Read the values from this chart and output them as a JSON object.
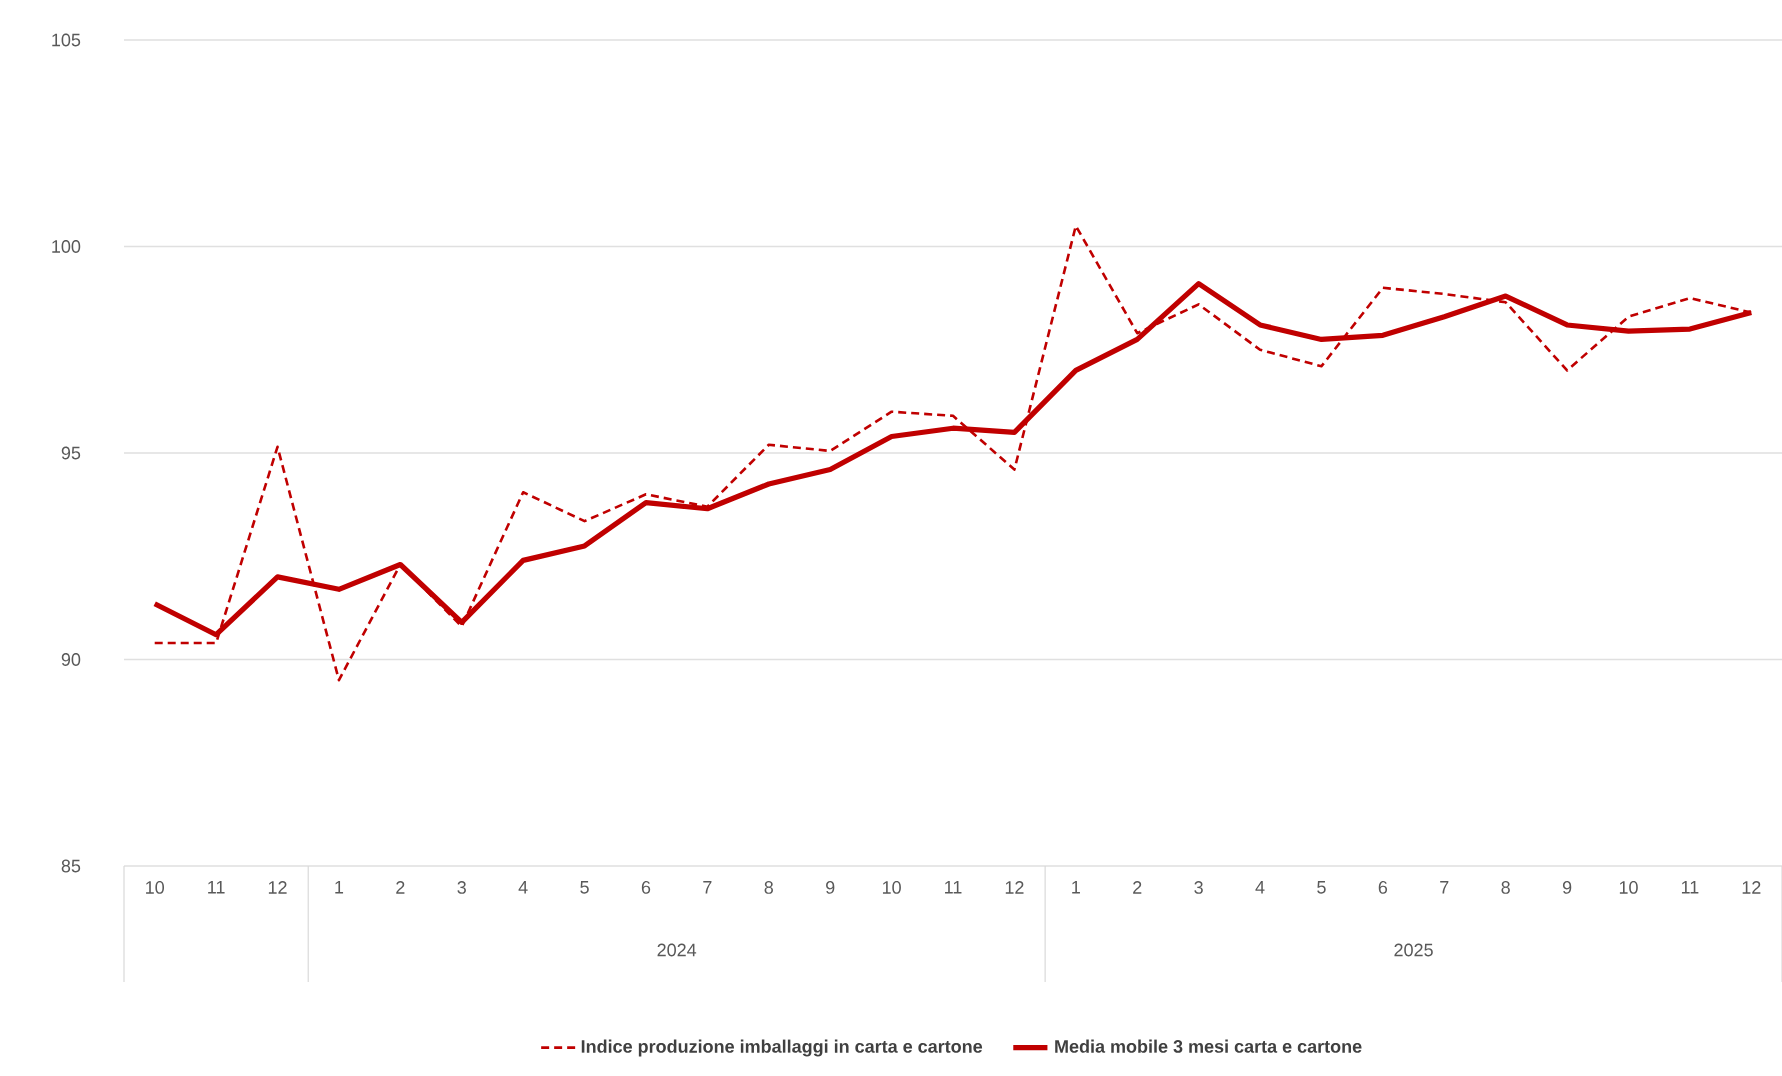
{
  "chart_data": {
    "type": "line",
    "categories": [
      "10",
      "11",
      "12",
      "1",
      "2",
      "3",
      "4",
      "5",
      "6",
      "7",
      "8",
      "9",
      "10",
      "11",
      "12",
      "1",
      "2",
      "3",
      "4",
      "5",
      "6",
      "7",
      "8",
      "9",
      "10",
      "11",
      "12"
    ],
    "series": [
      {
        "name": "Indice produzione imballaggi in carta e cartone",
        "color": "#c00000",
        "line_style": "dashed",
        "values": [
          90.4,
          90.4,
          95.15,
          89.5,
          92.3,
          90.8,
          94.05,
          93.35,
          94.0,
          93.7,
          95.2,
          95.05,
          96.0,
          95.9,
          94.6,
          100.5,
          97.9,
          98.6,
          97.5,
          97.1,
          99.0,
          98.85,
          98.65,
          97.0,
          98.3,
          98.75,
          98.4
        ]
      },
      {
        "name": "Media mobile 3 mesi  carta e cartone",
        "color": "#c00000",
        "line_style": "solid",
        "values": [
          91.35,
          90.6,
          92.0,
          91.7,
          92.3,
          90.9,
          92.4,
          92.75,
          93.8,
          93.65,
          94.25,
          94.6,
          95.4,
          95.6,
          95.5,
          97.0,
          97.75,
          99.1,
          98.1,
          97.75,
          97.85,
          98.3,
          98.8,
          98.1,
          97.95,
          98.0,
          98.4
        ]
      }
    ],
    "annotations": [
      "2024",
      "2025"
    ],
    "ylim": [
      85,
      105
    ],
    "yticks": [
      85,
      90,
      95,
      100,
      105
    ],
    "grid": "y",
    "legend": "bottom",
    "marker": "none"
  }
}
